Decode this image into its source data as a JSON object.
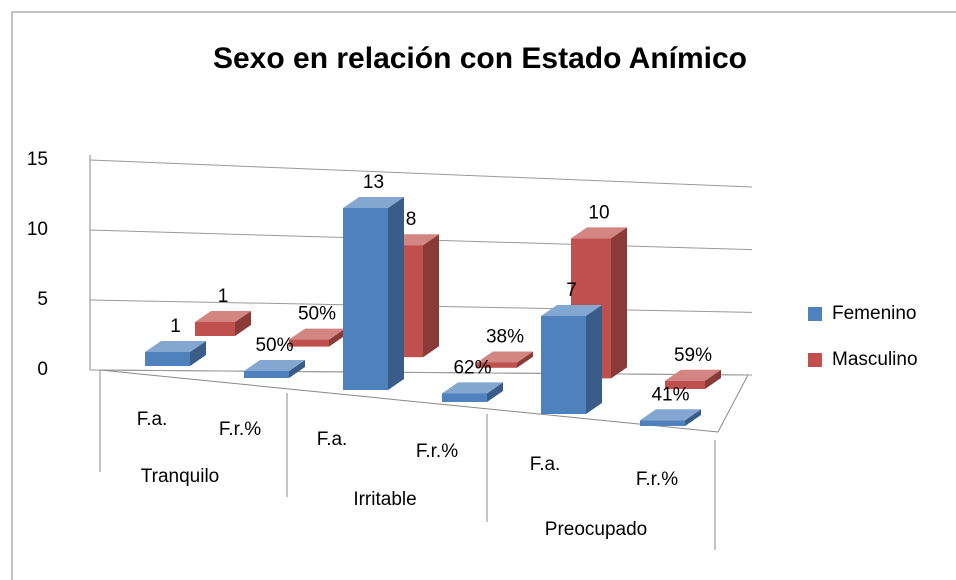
{
  "chart_data": {
    "type": "bar3d",
    "title": "Sexo en relación con  Estado Anímico",
    "categories": [
      "F.a.",
      "F.r.%",
      "F.a.",
      "F.r.%",
      "F.a.",
      "F.r.%"
    ],
    "category_groups": [
      "Tranquilo",
      "Irritable",
      "Preocupado"
    ],
    "series": [
      {
        "name": "Femenino",
        "color": "#4f81bd",
        "values": [
          1,
          0.5,
          13,
          0.62,
          7,
          0.41
        ],
        "value_labels": [
          "1",
          "50%",
          "13",
          "62%",
          "7",
          "41%"
        ]
      },
      {
        "name": "Masculino",
        "color": "#c0504d",
        "values": [
          1,
          0.5,
          8,
          0.38,
          10,
          0.59
        ],
        "value_labels": [
          "1",
          "50%",
          "8",
          "38%",
          "10",
          "59%"
        ]
      }
    ],
    "ylim": [
      0,
      15
    ],
    "yticks": [
      0,
      5,
      10,
      15
    ],
    "grid": true,
    "legend": "right"
  }
}
